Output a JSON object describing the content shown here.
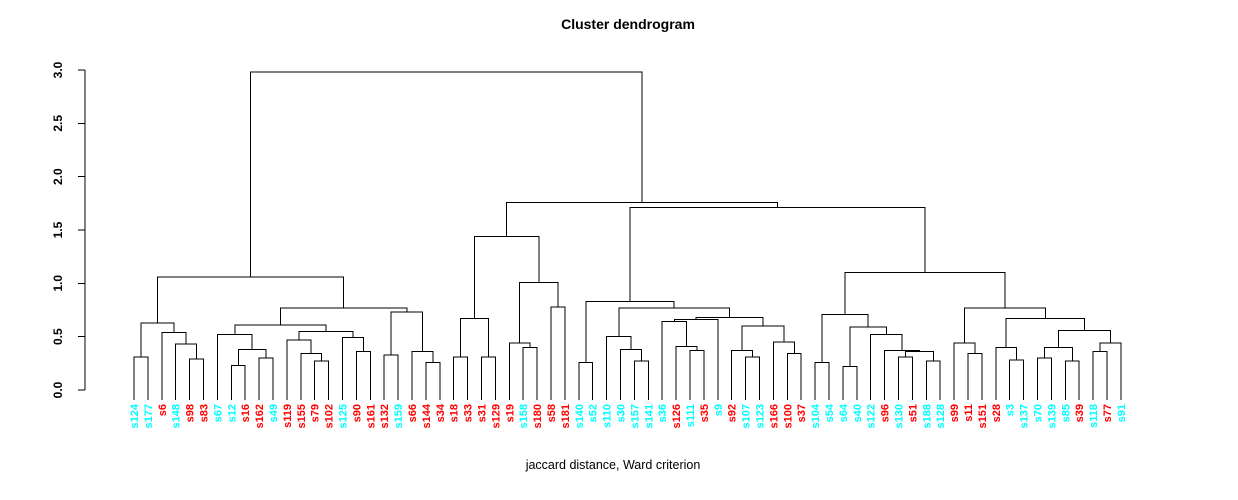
{
  "chart_data": {
    "type": "dendrogram",
    "title": "Cluster dendrogram",
    "xlabel": "jaccard distance, Ward criterion",
    "ylabel": "",
    "ylim": [
      0.0,
      3.0
    ],
    "y_ticks": [
      0.0,
      0.5,
      1.0,
      1.5,
      2.0,
      2.5,
      3.0
    ],
    "grid": false,
    "legend": "none",
    "colors": {
      "group_red": "#FF0000",
      "group_cyan": "#00FFFF",
      "line": "#000000",
      "background": "#FFFFFF"
    },
    "leaves": [
      {
        "label": "s124",
        "color": "#00FFFF"
      },
      {
        "label": "s177",
        "color": "#00FFFF"
      },
      {
        "label": "s6",
        "color": "#FF0000"
      },
      {
        "label": "s148",
        "color": "#00FFFF"
      },
      {
        "label": "s98",
        "color": "#FF0000"
      },
      {
        "label": "s83",
        "color": "#FF0000"
      },
      {
        "label": "s67",
        "color": "#00FFFF"
      },
      {
        "label": "s12",
        "color": "#00FFFF"
      },
      {
        "label": "s16",
        "color": "#FF0000"
      },
      {
        "label": "s162",
        "color": "#FF0000"
      },
      {
        "label": "s49",
        "color": "#00FFFF"
      },
      {
        "label": "s119",
        "color": "#FF0000"
      },
      {
        "label": "s155",
        "color": "#FF0000"
      },
      {
        "label": "s79",
        "color": "#FF0000"
      },
      {
        "label": "s102",
        "color": "#FF0000"
      },
      {
        "label": "s125",
        "color": "#00FFFF"
      },
      {
        "label": "s90",
        "color": "#FF0000"
      },
      {
        "label": "s161",
        "color": "#FF0000"
      },
      {
        "label": "s132",
        "color": "#FF0000"
      },
      {
        "label": "s159",
        "color": "#00FFFF"
      },
      {
        "label": "s66",
        "color": "#FF0000"
      },
      {
        "label": "s144",
        "color": "#FF0000"
      },
      {
        "label": "s34",
        "color": "#FF0000"
      },
      {
        "label": "s18",
        "color": "#FF0000"
      },
      {
        "label": "s33",
        "color": "#FF0000"
      },
      {
        "label": "s31",
        "color": "#FF0000"
      },
      {
        "label": "s129",
        "color": "#FF0000"
      },
      {
        "label": "s19",
        "color": "#FF0000"
      },
      {
        "label": "s158",
        "color": "#00FFFF"
      },
      {
        "label": "s180",
        "color": "#FF0000"
      },
      {
        "label": "s58",
        "color": "#FF0000"
      },
      {
        "label": "s181",
        "color": "#FF0000"
      },
      {
        "label": "s140",
        "color": "#00FFFF"
      },
      {
        "label": "s52",
        "color": "#00FFFF"
      },
      {
        "label": "s110",
        "color": "#00FFFF"
      },
      {
        "label": "s30",
        "color": "#00FFFF"
      },
      {
        "label": "s157",
        "color": "#00FFFF"
      },
      {
        "label": "s141",
        "color": "#00FFFF"
      },
      {
        "label": "s36",
        "color": "#00FFFF"
      },
      {
        "label": "s126",
        "color": "#FF0000"
      },
      {
        "label": "s111",
        "color": "#00FFFF"
      },
      {
        "label": "s35",
        "color": "#FF0000"
      },
      {
        "label": "s9",
        "color": "#00FFFF"
      },
      {
        "label": "s92",
        "color": "#FF0000"
      },
      {
        "label": "s107",
        "color": "#00FFFF"
      },
      {
        "label": "s123",
        "color": "#00FFFF"
      },
      {
        "label": "s166",
        "color": "#FF0000"
      },
      {
        "label": "s100",
        "color": "#FF0000"
      },
      {
        "label": "s37",
        "color": "#FF0000"
      },
      {
        "label": "s104",
        "color": "#00FFFF"
      },
      {
        "label": "s54",
        "color": "#00FFFF"
      },
      {
        "label": "s64",
        "color": "#00FFFF"
      },
      {
        "label": "s40",
        "color": "#00FFFF"
      },
      {
        "label": "s122",
        "color": "#00FFFF"
      },
      {
        "label": "s96",
        "color": "#FF0000"
      },
      {
        "label": "s130",
        "color": "#00FFFF"
      },
      {
        "label": "s51",
        "color": "#FF0000"
      },
      {
        "label": "s188",
        "color": "#00FFFF"
      },
      {
        "label": "s128",
        "color": "#00FFFF"
      },
      {
        "label": "s99",
        "color": "#FF0000"
      },
      {
        "label": "s11",
        "color": "#FF0000"
      },
      {
        "label": "s151",
        "color": "#FF0000"
      },
      {
        "label": "s28",
        "color": "#FF0000"
      },
      {
        "label": "s3",
        "color": "#00FFFF"
      },
      {
        "label": "s137",
        "color": "#00FFFF"
      },
      {
        "label": "s70",
        "color": "#00FFFF"
      },
      {
        "label": "s139",
        "color": "#00FFFF"
      },
      {
        "label": "s85",
        "color": "#00FFFF"
      },
      {
        "label": "s39",
        "color": "#FF0000"
      },
      {
        "label": "s118",
        "color": "#00FFFF"
      },
      {
        "label": "s77",
        "color": "#FF0000"
      },
      {
        "label": "s91",
        "color": "#00FFFF"
      }
    ],
    "tree": {
      "h": 2.98,
      "c": [
        {
          "h": 1.06,
          "c": [
            {
              "h": 0.63,
              "c": [
                {
                  "h": 0.31,
                  "c": [
                    "s124",
                    "s177"
                  ]
                },
                {
                  "h": 0.54,
                  "c": [
                    "s6",
                    {
                      "h": 0.43,
                      "c": [
                        "s148",
                        {
                          "h": 0.29,
                          "c": [
                            "s98",
                            "s83"
                          ]
                        }
                      ]
                    }
                  ]
                }
              ]
            },
            {
              "h": 0.77,
              "c": [
                {
                  "h": 0.61,
                  "c": [
                    {
                      "h": 0.52,
                      "c": [
                        "s67",
                        {
                          "h": 0.38,
                          "c": [
                            {
                              "h": 0.23,
                              "c": [
                                "s12",
                                "s16"
                              ]
                            },
                            {
                              "h": 0.3,
                              "c": [
                                "s162",
                                "s49"
                              ]
                            }
                          ]
                        }
                      ]
                    },
                    {
                      "h": 0.55,
                      "c": [
                        {
                          "h": 0.47,
                          "c": [
                            "s119",
                            {
                              "h": 0.34,
                              "c": [
                                "s155",
                                {
                                  "h": 0.27,
                                  "c": [
                                    "s79",
                                    "s102"
                                  ]
                                }
                              ]
                            }
                          ]
                        },
                        {
                          "h": 0.49,
                          "c": [
                            "s125",
                            {
                              "h": 0.36,
                              "c": [
                                "s90",
                                "s161"
                              ]
                            }
                          ]
                        }
                      ]
                    }
                  ]
                },
                {
                  "h": 0.73,
                  "c": [
                    {
                      "h": 0.33,
                      "c": [
                        "s132",
                        "s159"
                      ]
                    },
                    {
                      "h": 0.36,
                      "c": [
                        "s66",
                        {
                          "h": 0.26,
                          "c": [
                            "s144",
                            "s34"
                          ]
                        }
                      ]
                    }
                  ]
                }
              ]
            }
          ]
        },
        {
          "h": 1.76,
          "c": [
            {
              "h": 1.44,
              "c": [
                {
                  "h": 0.67,
                  "c": [
                    {
                      "h": 0.31,
                      "c": [
                        "s18",
                        "s33"
                      ]
                    },
                    {
                      "h": 0.31,
                      "c": [
                        "s31",
                        "s129"
                      ]
                    }
                  ]
                },
                {
                  "h": 1.01,
                  "c": [
                    {
                      "h": 0.44,
                      "c": [
                        "s19",
                        {
                          "h": 0.4,
                          "c": [
                            "s158",
                            "s180"
                          ]
                        }
                      ]
                    },
                    {
                      "h": 0.78,
                      "c": [
                        "s58",
                        "s181"
                      ]
                    }
                  ]
                }
              ]
            },
            {
              "h": 1.71,
              "c": [
                {
                  "h": 0.83,
                  "c": [
                    {
                      "h": 0.26,
                      "c": [
                        "s140",
                        "s52"
                      ]
                    },
                    {
                      "h": 0.77,
                      "c": [
                        {
                          "h": 0.5,
                          "c": [
                            "s110",
                            {
                              "h": 0.38,
                              "c": [
                                "s30",
                                {
                                  "h": 0.27,
                                  "c": [
                                    "s157",
                                    "s141"
                                  ]
                                }
                              ]
                            }
                          ]
                        },
                        {
                          "h": 0.68,
                          "c": [
                            {
                              "h": 0.66,
                              "c": [
                                {
                                  "h": 0.64,
                                  "c": [
                                    "s36",
                                    {
                                      "h": 0.41,
                                      "c": [
                                        "s126",
                                        {
                                          "h": 0.37,
                                          "c": [
                                            "s111",
                                            "s35"
                                          ]
                                        }
                                      ]
                                    }
                                  ]
                                },
                                "s9"
                              ]
                            },
                            {
                              "h": 0.6,
                              "c": [
                                {
                                  "h": 0.37,
                                  "c": [
                                    "s92",
                                    {
                                      "h": 0.31,
                                      "c": [
                                        "s107",
                                        "s123"
                                      ]
                                    }
                                  ]
                                },
                                {
                                  "h": 0.45,
                                  "c": [
                                    "s166",
                                    {
                                      "h": 0.34,
                                      "c": [
                                        "s100",
                                        "s37"
                                      ]
                                    }
                                  ]
                                }
                              ]
                            }
                          ]
                        }
                      ]
                    }
                  ]
                },
                {
                  "h": 1.1,
                  "c": [
                    {
                      "h": 0.71,
                      "c": [
                        {
                          "h": 0.26,
                          "c": [
                            "s104",
                            "s54"
                          ]
                        },
                        {
                          "h": 0.59,
                          "c": [
                            {
                              "h": 0.22,
                              "c": [
                                "s64",
                                "s40"
                              ]
                            },
                            {
                              "h": 0.52,
                              "c": [
                                "s122",
                                {
                                  "h": 0.37,
                                  "c": [
                                    "s96",
                                    {
                                      "h": 0.36,
                                      "c": [
                                        {
                                          "h": 0.31,
                                          "c": [
                                            "s130",
                                            "s51"
                                          ]
                                        },
                                        {
                                          "h": 0.27,
                                          "c": [
                                            "s188",
                                            "s128"
                                          ]
                                        }
                                      ]
                                    }
                                  ]
                                }
                              ]
                            }
                          ]
                        }
                      ]
                    },
                    {
                      "h": 0.77,
                      "c": [
                        {
                          "h": 0.44,
                          "c": [
                            "s99",
                            {
                              "h": 0.34,
                              "c": [
                                "s11",
                                "s151"
                              ]
                            }
                          ]
                        },
                        {
                          "h": 0.67,
                          "c": [
                            {
                              "h": 0.4,
                              "c": [
                                "s28",
                                {
                                  "h": 0.28,
                                  "c": [
                                    "s3",
                                    "s137"
                                  ]
                                }
                              ]
                            },
                            {
                              "h": 0.56,
                              "c": [
                                {
                                  "h": 0.4,
                                  "c": [
                                    {
                                      "h": 0.3,
                                      "c": [
                                        "s70",
                                        "s139"
                                      ]
                                    },
                                    {
                                      "h": 0.27,
                                      "c": [
                                        "s85",
                                        "s39"
                                      ]
                                    }
                                  ]
                                },
                                {
                                  "h": 0.44,
                                  "c": [
                                    {
                                      "h": 0.36,
                                      "c": [
                                        "s118",
                                        "s77"
                                      ]
                                    },
                                    "s91"
                                  ]
                                }
                              ]
                            }
                          ]
                        }
                      ]
                    }
                  ]
                }
              ]
            }
          ]
        }
      ]
    }
  }
}
